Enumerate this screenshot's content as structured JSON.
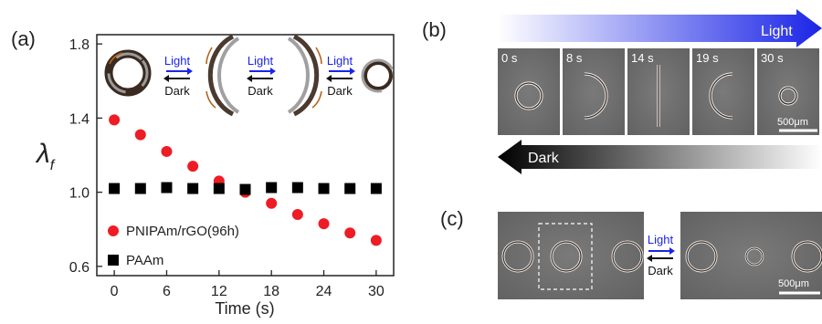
{
  "panel_labels": {
    "a": "(a)",
    "b": "(b)",
    "c": "(c)"
  },
  "chart_data": {
    "type": "scatter",
    "xlabel": "Time (s)",
    "ylabel": "λf",
    "xlim": [
      -2,
      32
    ],
    "ylim": [
      0.55,
      1.85
    ],
    "xticks": [
      0,
      6,
      12,
      18,
      24,
      30
    ],
    "yticks": [
      0.6,
      1.0,
      1.4,
      1.8
    ],
    "ytick_labels": [
      "0.6",
      "1.0",
      "1.4",
      "1.8"
    ],
    "grid": false,
    "legend_position": "bottom-left",
    "series": [
      {
        "name": "PNIPAm/rGO(96h)",
        "marker": "circle",
        "color": "#ee1c24",
        "x": [
          0,
          3,
          6,
          9,
          12,
          15,
          18,
          21,
          24,
          27,
          30
        ],
        "y": [
          1.39,
          1.31,
          1.22,
          1.14,
          1.06,
          1.0,
          0.94,
          0.88,
          0.83,
          0.78,
          0.74
        ]
      },
      {
        "name": "PAAm",
        "marker": "square",
        "color": "#000000",
        "x": [
          0,
          3,
          6,
          9,
          12,
          15,
          18,
          21,
          24,
          27,
          30
        ],
        "y": [
          1.02,
          1.02,
          1.025,
          1.02,
          1.02,
          1.015,
          1.025,
          1.025,
          1.02,
          1.02,
          1.02
        ]
      }
    ]
  },
  "schematic": {
    "light_label": "Light",
    "dark_label": "Dark"
  },
  "panel_b": {
    "light_label": "Light",
    "dark_label": "Dark",
    "frames": [
      {
        "time": "0 s",
        "shape": "ring"
      },
      {
        "time": "8 s",
        "shape": "arc-open-left"
      },
      {
        "time": "14 s",
        "shape": "line"
      },
      {
        "time": "19 s",
        "shape": "arc-open-right"
      },
      {
        "time": "30 s",
        "shape": "small-ring"
      }
    ],
    "scale_label": "500μm"
  },
  "panel_c": {
    "light_label": "Light",
    "dark_label": "Dark",
    "scale_label": "500μm"
  },
  "colors": {
    "light_blue": "#1a24e6",
    "red": "#ee1c24",
    "micrograph_bg": "#6e6e6e",
    "arrow_brown": "#b5651d"
  }
}
